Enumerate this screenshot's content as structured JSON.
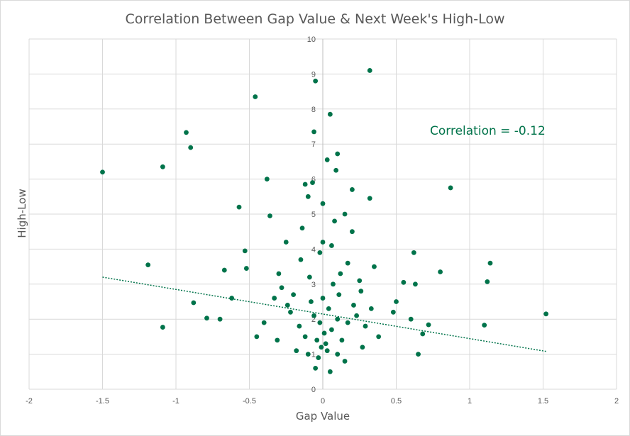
{
  "chart_data": {
    "type": "scatter",
    "title": "Correlation Between Gap Value & Next Week's High-Low",
    "xlabel": "Gap Value",
    "ylabel": "High-Low",
    "xlim": [
      -2,
      2
    ],
    "ylim": [
      0,
      10
    ],
    "x_ticks": [
      "-2",
      "-1.5",
      "-1",
      "-0.5",
      "0",
      "0.5",
      "1",
      "1.5",
      "2"
    ],
    "y_ticks": [
      "0",
      "1",
      "2",
      "3",
      "4",
      "5",
      "6",
      "7",
      "8",
      "9",
      "10"
    ],
    "grid": true,
    "annotation": "Correlation = -0.12",
    "marker_color": "#00734a",
    "trendline": {
      "type": "linear",
      "style": "dotted",
      "x": [
        -1.5,
        1.52
      ],
      "y": [
        3.2,
        1.08
      ]
    },
    "series": [
      {
        "name": "Gap vs High-Low",
        "points": [
          [
            -1.5,
            6.2
          ],
          [
            -1.09,
            6.35
          ],
          [
            -0.93,
            7.33
          ],
          [
            -0.9,
            6.9
          ],
          [
            -0.46,
            8.35
          ],
          [
            0.32,
            9.1
          ],
          [
            -0.05,
            8.8
          ],
          [
            0.05,
            7.85
          ],
          [
            -0.06,
            7.35
          ],
          [
            0.03,
            6.55
          ],
          [
            0.1,
            6.72
          ],
          [
            0.87,
            5.75
          ],
          [
            0.32,
            5.45
          ],
          [
            0.09,
            6.25
          ],
          [
            -0.38,
            6.0
          ],
          [
            -0.57,
            5.2
          ],
          [
            -0.36,
            4.95
          ],
          [
            -1.19,
            3.55
          ],
          [
            -1.09,
            1.77
          ],
          [
            -0.88,
            2.47
          ],
          [
            -0.79,
            2.03
          ],
          [
            -0.7,
            2.0
          ],
          [
            -0.67,
            3.4
          ],
          [
            -0.53,
            3.95
          ],
          [
            -0.52,
            3.45
          ],
          [
            0.62,
            3.9
          ],
          [
            0.63,
            3.0
          ],
          [
            0.8,
            3.35
          ],
          [
            1.12,
            3.07
          ],
          [
            1.14,
            3.6
          ],
          [
            1.1,
            1.83
          ],
          [
            1.52,
            2.15
          ],
          [
            0.65,
            1.0
          ],
          [
            0.55,
            3.05
          ],
          [
            0.68,
            1.58
          ],
          [
            0.72,
            1.84
          ],
          [
            0.6,
            2.0
          ],
          [
            0.48,
            2.2
          ],
          [
            0.5,
            2.5
          ],
          [
            0.35,
            3.5
          ],
          [
            0.29,
            1.8
          ],
          [
            -0.12,
            5.85
          ],
          [
            -0.07,
            5.9
          ],
          [
            0.0,
            4.2
          ],
          [
            -0.02,
            3.9
          ],
          [
            0.06,
            4.1
          ],
          [
            -0.15,
            3.7
          ],
          [
            0.12,
            3.3
          ],
          [
            0.25,
            3.1
          ],
          [
            -0.28,
            2.9
          ],
          [
            -0.33,
            2.6
          ],
          [
            -0.22,
            2.2
          ],
          [
            0.21,
            2.4
          ],
          [
            0.33,
            2.3
          ],
          [
            -0.4,
            1.9
          ],
          [
            -0.31,
            1.4
          ],
          [
            -0.18,
            1.1
          ],
          [
            0.27,
            1.2
          ],
          [
            0.38,
            1.5
          ],
          [
            0.15,
            0.8
          ],
          [
            -0.05,
            0.6
          ],
          [
            0.05,
            0.5
          ],
          [
            -0.1,
            1.0
          ],
          [
            0.1,
            1.0
          ],
          [
            -0.45,
            1.5
          ],
          [
            -0.62,
            2.6
          ],
          [
            -0.25,
            4.2
          ],
          [
            0.2,
            4.5
          ],
          [
            0.15,
            5.0
          ],
          [
            -0.1,
            5.5
          ],
          [
            0.2,
            5.7
          ],
          [
            0.0,
            5.3
          ],
          [
            -0.14,
            4.6
          ],
          [
            0.08,
            4.8
          ],
          [
            -0.3,
            3.3
          ],
          [
            0.17,
            3.6
          ],
          [
            -0.2,
            2.7
          ],
          [
            0.26,
            2.8
          ],
          [
            -0.08,
            2.5
          ],
          [
            0.04,
            2.3
          ],
          [
            -0.02,
            1.9
          ],
          [
            0.01,
            1.6
          ],
          [
            -0.04,
            1.4
          ],
          [
            0.02,
            1.3
          ],
          [
            0.06,
            1.7
          ],
          [
            -0.06,
            2.1
          ],
          [
            0.1,
            2.0
          ],
          [
            -0.12,
            1.5
          ],
          [
            0.13,
            1.4
          ],
          [
            -0.16,
            1.8
          ],
          [
            0.17,
            1.9
          ],
          [
            -0.01,
            1.2
          ],
          [
            0.03,
            1.1
          ],
          [
            -0.03,
            0.9
          ],
          [
            0.0,
            2.6
          ],
          [
            0.07,
            3.0
          ],
          [
            -0.09,
            3.2
          ],
          [
            0.11,
            2.7
          ],
          [
            -0.24,
            2.4
          ],
          [
            0.23,
            2.1
          ]
        ]
      }
    ]
  }
}
